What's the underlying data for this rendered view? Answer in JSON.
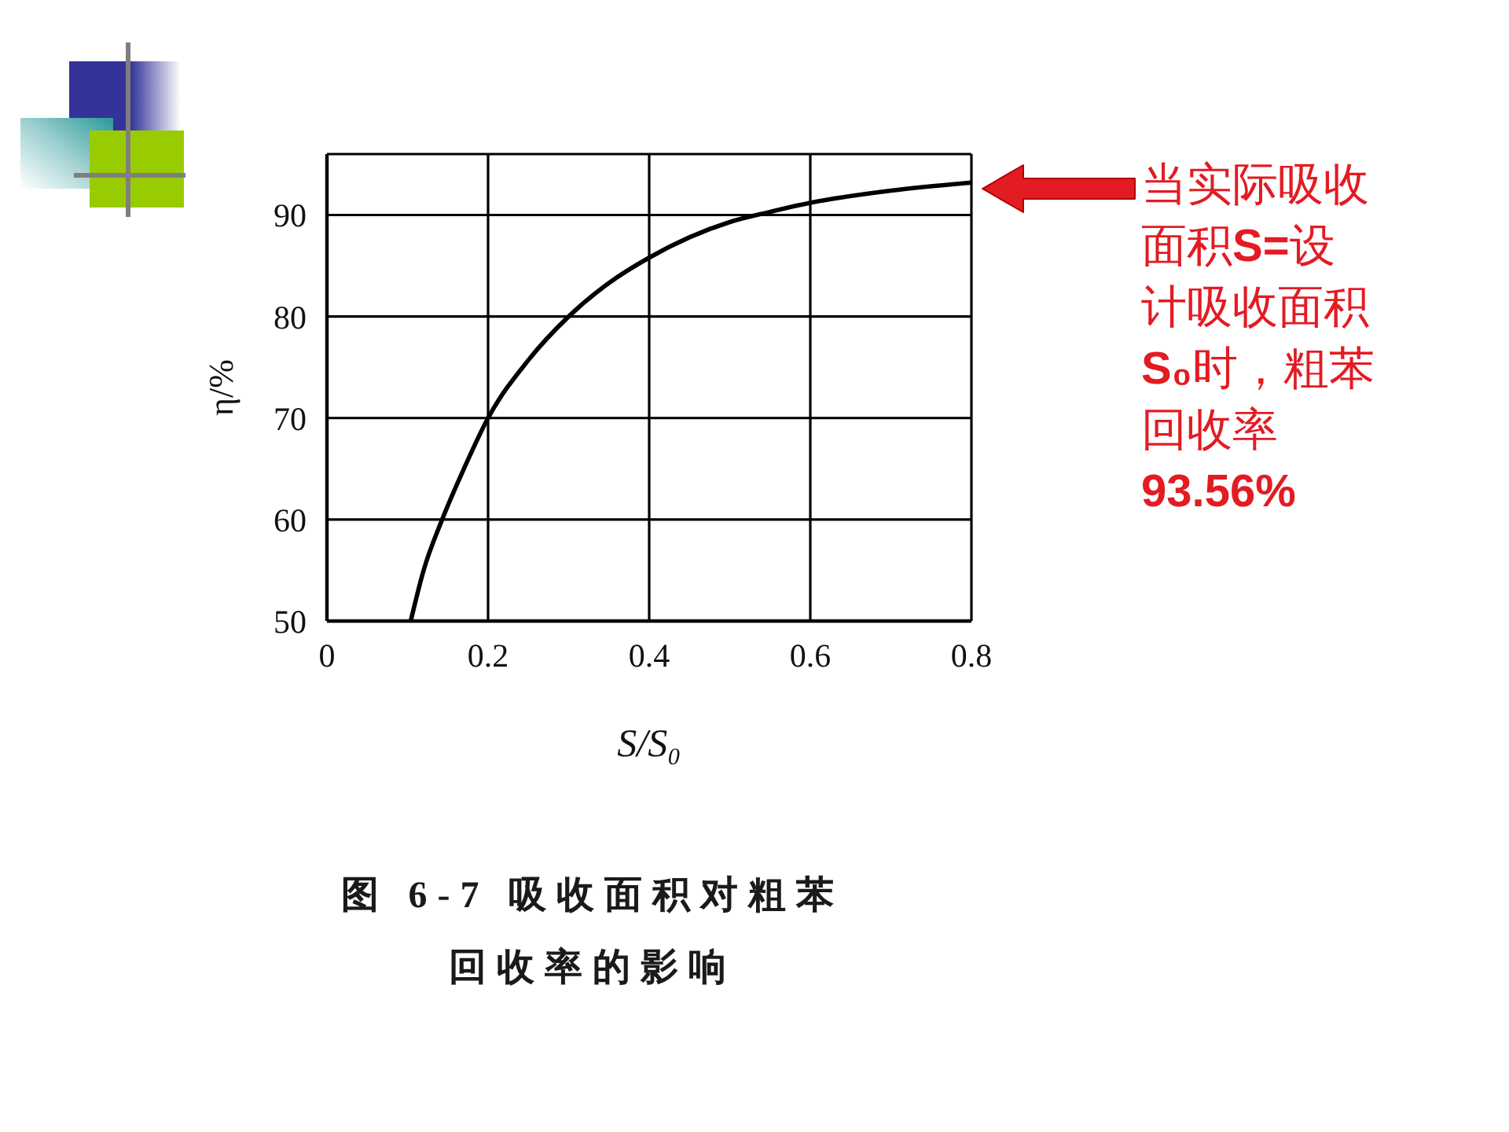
{
  "chart_data": {
    "type": "line",
    "xlabel": "S/S₀",
    "ylabel": "η/%",
    "x": [
      0.104,
      0.12,
      0.143,
      0.17,
      0.2,
      0.25,
      0.3,
      0.35,
      0.4,
      0.45,
      0.5,
      0.55,
      0.6,
      0.7,
      0.8
    ],
    "values": [
      50,
      55,
      60,
      65,
      70,
      75.7,
      80,
      83.3,
      85.8,
      87.8,
      89.3,
      90.3,
      91.2,
      92.4,
      93.2
    ],
    "color": "#000000",
    "xlim": [
      0,
      0.8
    ],
    "xticks": [
      0,
      0.2,
      0.4,
      0.6,
      0.8
    ],
    "ylim": [
      50,
      96
    ],
    "yticks": [
      50,
      60,
      70,
      80,
      90
    ],
    "grid": true,
    "marker": "none",
    "line_style": "solid",
    "annotations": [
      "当实际吸收面积S=设计吸收面积S₀时，粗苯回收率93.56%",
      "图 6-7 吸收面积对粗苯回收率的影响"
    ]
  }
}
